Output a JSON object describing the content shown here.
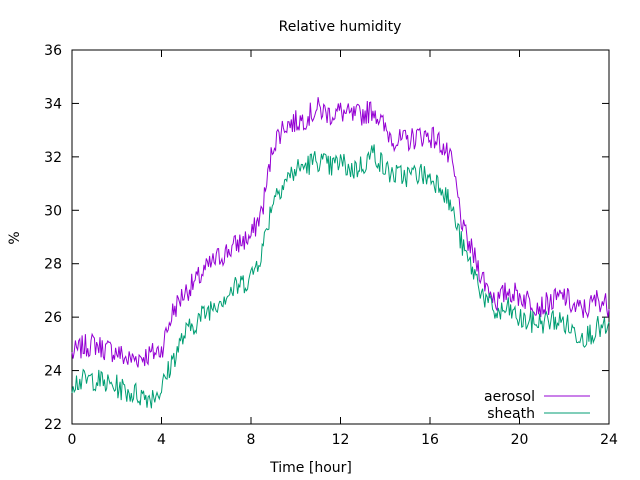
{
  "chart_data": {
    "type": "line",
    "title": "Relative humidity",
    "xlabel": "Time [hour]",
    "ylabel": "%",
    "xlim": [
      0,
      24
    ],
    "ylim": [
      22,
      36
    ],
    "xticks": [
      0,
      4,
      8,
      12,
      16,
      20,
      24
    ],
    "yticks": [
      22,
      24,
      26,
      28,
      30,
      32,
      34,
      36
    ],
    "grid": false,
    "legend_position": "bottom-right",
    "series": [
      {
        "name": "aerosol",
        "color": "#9400d3",
        "x": [
          0,
          0.5,
          1,
          1.5,
          2,
          2.5,
          3,
          3.5,
          4,
          4.5,
          5,
          5.5,
          6,
          6.5,
          7,
          7.5,
          8,
          8.5,
          9,
          9.5,
          10,
          10.5,
          11,
          11.5,
          12,
          12.5,
          13,
          13.5,
          14,
          14.5,
          15,
          15.5,
          16,
          16.5,
          17,
          17.5,
          18,
          18.5,
          19,
          19.5,
          20,
          20.5,
          21,
          21.5,
          22,
          22.5,
          23,
          23.5,
          24
        ],
        "y": [
          24.6,
          24.9,
          25.0,
          24.8,
          24.7,
          24.4,
          24.5,
          24.6,
          24.8,
          26.2,
          26.9,
          27.3,
          27.8,
          28.2,
          28.5,
          28.8,
          29.0,
          30.0,
          32.5,
          33.2,
          33.3,
          33.5,
          33.8,
          33.6,
          33.7,
          33.5,
          33.6,
          33.8,
          33.0,
          32.6,
          32.6,
          32.8,
          32.8,
          32.5,
          31.7,
          29.2,
          28.2,
          27.2,
          26.6,
          27.0,
          26.8,
          26.6,
          26.4,
          26.6,
          26.8,
          26.3,
          26.3,
          26.7,
          26.4
        ]
      },
      {
        "name": "sheath",
        "color": "#009e73",
        "x": [
          0,
          0.5,
          1,
          1.5,
          2,
          2.5,
          3,
          3.5,
          4,
          4.5,
          5,
          5.5,
          6,
          6.5,
          7,
          7.5,
          8,
          8.5,
          9,
          9.5,
          10,
          10.5,
          11,
          11.5,
          12,
          12.5,
          13,
          13.5,
          14,
          14.5,
          15,
          15.5,
          16,
          16.5,
          17,
          17.5,
          18,
          18.5,
          19,
          19.5,
          20,
          20.5,
          21,
          21.5,
          22,
          22.5,
          23,
          23.5,
          24
        ],
        "y": [
          23.6,
          23.6,
          23.7,
          23.5,
          23.4,
          23.2,
          23.1,
          23.0,
          23.3,
          24.4,
          25.3,
          25.8,
          26.2,
          26.6,
          26.9,
          27.2,
          27.5,
          28.5,
          30.5,
          31.1,
          31.5,
          31.7,
          31.9,
          31.6,
          31.8,
          31.5,
          31.7,
          32.2,
          31.5,
          31.3,
          31.3,
          31.4,
          31.2,
          31.0,
          30.0,
          28.5,
          27.6,
          26.6,
          26.1,
          26.3,
          25.9,
          25.8,
          25.8,
          25.9,
          25.8,
          25.4,
          25.3,
          25.6,
          25.5
        ]
      }
    ]
  }
}
